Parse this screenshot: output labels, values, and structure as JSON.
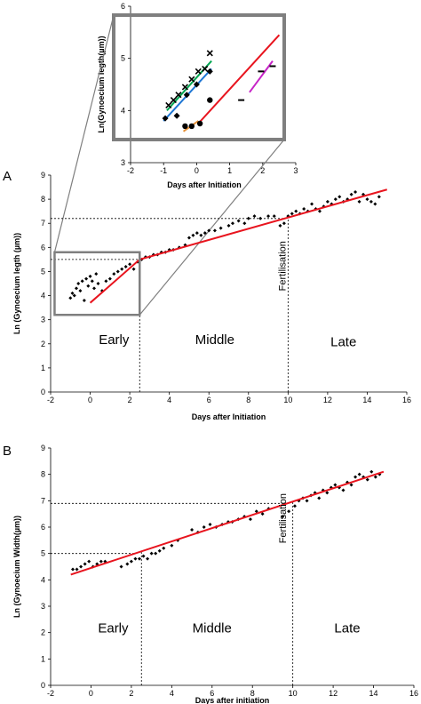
{
  "chart_data": [
    {
      "id": "inset",
      "type": "scatter",
      "title": "",
      "xlabel": "Days after Initiation",
      "ylabel": "Ln(Gynoecium legth(µm))",
      "xlim": [
        -2,
        3
      ],
      "ylim": [
        3,
        6
      ],
      "xticks": [
        "-2",
        "-1",
        "0",
        "1",
        "2",
        "3"
      ],
      "yticks": [
        "3",
        "4",
        "5",
        "6"
      ],
      "grid": false,
      "series": [
        {
          "marker": "x",
          "color": "#000000",
          "x": [
            -0.85,
            -0.7,
            -0.55,
            -0.35,
            -0.15,
            0.05,
            0.25,
            0.4
          ],
          "y": [
            4.1,
            4.2,
            4.3,
            4.45,
            4.6,
            4.75,
            4.8,
            5.1
          ]
        },
        {
          "marker": "diamond",
          "color": "#000000",
          "x": [
            -0.95,
            -0.6,
            -0.3,
            0.0,
            0.4
          ],
          "y": [
            3.85,
            3.9,
            4.3,
            4.5,
            4.75
          ]
        },
        {
          "marker": "circle",
          "color": "#000000",
          "x": [
            -0.35,
            -0.15,
            0.1,
            0.4
          ],
          "y": [
            3.7,
            3.7,
            3.75,
            4.2
          ]
        },
        {
          "marker": "dash",
          "color": "#000000",
          "x": [
            1.35,
            1.95,
            2.3
          ],
          "y": [
            4.2,
            4.75,
            4.85
          ]
        }
      ],
      "fit_lines": [
        {
          "color": "#00a651",
          "x": [
            -0.9,
            0.45
          ],
          "y": [
            4.0,
            4.95
          ]
        },
        {
          "color": "#1f77d4",
          "x": [
            -1.0,
            0.45
          ],
          "y": [
            3.8,
            4.8
          ]
        },
        {
          "color": "#e69138",
          "x": [
            -0.4,
            0.05
          ],
          "y": [
            3.6,
            3.8
          ]
        },
        {
          "color": "#e8141e",
          "x": [
            0.05,
            2.5
          ],
          "y": [
            3.75,
            5.45
          ]
        },
        {
          "color": "#c724c7",
          "x": [
            1.6,
            2.3
          ],
          "y": [
            4.35,
            4.95
          ]
        }
      ]
    },
    {
      "id": "A",
      "panel_label": "A",
      "type": "scatter",
      "title": "",
      "xlabel": "Days after Initiation",
      "ylabel": "Ln (Gynoecium legth (µm))",
      "xlim": [
        -2,
        16
      ],
      "ylim": [
        0,
        9
      ],
      "xticks": [
        "-2",
        "0",
        "2",
        "4",
        "6",
        "8",
        "10",
        "12",
        "14",
        "16"
      ],
      "yticks": [
        "0",
        "1",
        "2",
        "3",
        "4",
        "5",
        "6",
        "7",
        "8",
        "9"
      ],
      "grid": false,
      "fit_line": {
        "color": "#e8141e",
        "x": [
          0,
          2.5,
          15
        ],
        "y": [
          3.7,
          5.5,
          8.4
        ]
      },
      "reference_lines": {
        "x": [
          2.5,
          10
        ],
        "y": [
          5.5,
          7.2
        ]
      },
      "zoom_box": {
        "x": [
          -1.8,
          2.5
        ],
        "y": [
          3.2,
          5.8
        ]
      },
      "phases": [
        {
          "label": "Early",
          "x": 1.2,
          "y": 2.0
        },
        {
          "label": "Middle",
          "x": 6.3,
          "y": 2.0
        },
        {
          "label": "Late",
          "x": 12.8,
          "y": 1.9
        }
      ],
      "annotation": {
        "label": "Fertilisation",
        "x": 10,
        "y": 7.0
      },
      "points": {
        "x": [
          -1,
          -0.9,
          -0.8,
          -0.7,
          -0.6,
          -0.5,
          -0.4,
          -0.3,
          -0.2,
          -0.1,
          0.0,
          0.1,
          0.2,
          0.3,
          0.4,
          0.6,
          0.8,
          1.0,
          1.2,
          1.4,
          1.6,
          1.8,
          2.0,
          2.2,
          2.4,
          2.6,
          2.8,
          3.0,
          3.2,
          3.4,
          3.6,
          3.8,
          4.0,
          4.2,
          4.5,
          4.8,
          5.0,
          5.2,
          5.4,
          5.6,
          5.8,
          6.0,
          6.3,
          6.6,
          7.0,
          7.2,
          7.5,
          7.8,
          8.0,
          8.3,
          8.6,
          9.0,
          9.3,
          9.6,
          9.8,
          10.0,
          10.2,
          10.4,
          10.6,
          10.8,
          11.0,
          11.2,
          11.4,
          11.6,
          11.8,
          12.0,
          12.2,
          12.4,
          12.6,
          12.8,
          13.0,
          13.2,
          13.4,
          13.6,
          13.8,
          14.0,
          14.2,
          14.4,
          14.6
        ],
        "y": [
          3.9,
          4.1,
          4.0,
          4.3,
          4.5,
          4.2,
          4.6,
          3.8,
          4.7,
          4.4,
          4.8,
          4.6,
          4.3,
          4.9,
          4.5,
          4.2,
          4.6,
          4.7,
          4.9,
          5.0,
          5.1,
          5.2,
          5.3,
          5.1,
          5.4,
          5.5,
          5.6,
          5.6,
          5.7,
          5.7,
          5.8,
          5.8,
          5.9,
          5.9,
          6.0,
          6.1,
          6.4,
          6.5,
          6.6,
          6.5,
          6.6,
          6.7,
          6.7,
          6.8,
          6.9,
          7.0,
          7.1,
          7.0,
          7.2,
          7.3,
          7.2,
          7.3,
          7.3,
          6.9,
          7.0,
          7.3,
          7.4,
          7.5,
          7.4,
          7.6,
          7.5,
          7.8,
          7.6,
          7.5,
          7.7,
          7.9,
          7.8,
          8.0,
          8.1,
          7.9,
          8.0,
          8.2,
          8.3,
          7.9,
          8.2,
          8.0,
          7.9,
          7.8,
          8.1
        ]
      }
    },
    {
      "id": "B",
      "panel_label": "B",
      "type": "scatter",
      "title": "",
      "xlabel": "Days after initiation",
      "ylabel": "Ln (Gynoecium Width(µm))",
      "xlim": [
        -2,
        16
      ],
      "ylim": [
        0,
        9
      ],
      "xticks": [
        "-2",
        "0",
        "2",
        "4",
        "6",
        "8",
        "10",
        "12",
        "14",
        "16"
      ],
      "yticks": [
        "0",
        "1",
        "2",
        "3",
        "4",
        "5",
        "6",
        "7",
        "8",
        "9"
      ],
      "grid": false,
      "fit_line": {
        "color": "#e8141e",
        "x": [
          -1,
          14.5
        ],
        "y": [
          4.2,
          8.1
        ]
      },
      "reference_lines": {
        "x": [
          2.5,
          10
        ],
        "y": [
          5.0,
          6.9
        ]
      },
      "phases": [
        {
          "label": "Early",
          "x": 1.1,
          "y": 2.0
        },
        {
          "label": "Middle",
          "x": 6.0,
          "y": 2.0
        },
        {
          "label": "Late",
          "x": 12.7,
          "y": 2.0
        }
      ],
      "annotation": {
        "label": "Fertilisation",
        "x": 9.8,
        "y": 6.5
      },
      "points": {
        "x": [
          -0.9,
          -0.7,
          -0.5,
          -0.3,
          -0.1,
          0.1,
          0.3,
          0.5,
          0.7,
          1.5,
          1.8,
          2.0,
          2.2,
          2.4,
          2.6,
          2.8,
          3.0,
          3.2,
          3.4,
          3.6,
          4.0,
          4.3,
          5.0,
          5.3,
          5.6,
          5.9,
          6.2,
          6.5,
          6.8,
          7.0,
          7.3,
          7.6,
          7.9,
          8.2,
          8.5,
          8.8,
          9.5,
          9.8,
          10.1,
          10.3,
          10.5,
          10.7,
          10.9,
          11.1,
          11.3,
          11.5,
          11.7,
          11.9,
          12.1,
          12.3,
          12.5,
          12.7,
          12.9,
          13.1,
          13.3,
          13.5,
          13.7,
          13.9,
          14.1,
          14.3
        ],
        "y": [
          4.4,
          4.4,
          4.5,
          4.6,
          4.7,
          4.5,
          4.6,
          4.7,
          4.7,
          4.5,
          4.6,
          4.7,
          4.8,
          4.8,
          4.9,
          4.8,
          5.0,
          5.0,
          5.1,
          5.2,
          5.3,
          5.5,
          5.9,
          5.8,
          6.0,
          6.1,
          6.0,
          6.1,
          6.2,
          6.2,
          6.3,
          6.4,
          6.3,
          6.6,
          6.5,
          6.7,
          6.4,
          6.6,
          6.8,
          7.0,
          7.1,
          7.0,
          7.2,
          7.3,
          7.1,
          7.4,
          7.3,
          7.5,
          7.6,
          7.5,
          7.4,
          7.7,
          7.6,
          7.9,
          8.0,
          7.9,
          7.8,
          8.1,
          7.9,
          8.0
        ]
      }
    }
  ]
}
